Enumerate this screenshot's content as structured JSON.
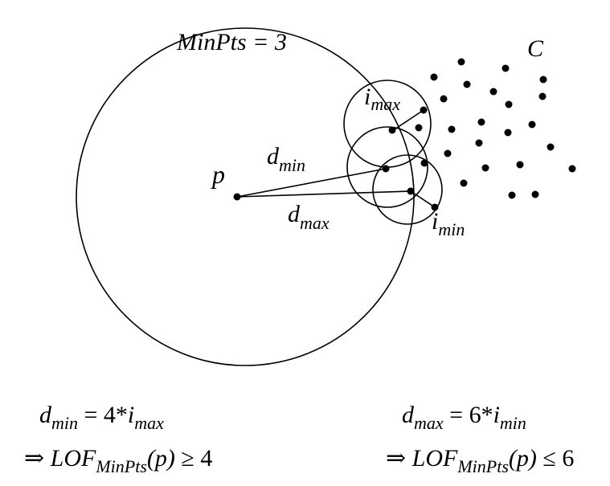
{
  "labels": {
    "minpts_label": "MinPts = 3",
    "cluster_label": "C",
    "point_p": "p",
    "d_min_base": "d",
    "d_min_sub": "min",
    "d_max_base": "d",
    "d_max_sub": "max",
    "i_max_base": "i",
    "i_max_sub": "max",
    "i_min_base": "i",
    "i_min_sub": "min"
  },
  "equations": {
    "left": {
      "lhs_base": "d",
      "lhs_sub": "min",
      "rhs": " = 4*",
      "rhs_var": "i",
      "rhs_sub": "max",
      "implies": "⇒ ",
      "lof": "LOF",
      "lof_sub": "MinPts",
      "arg": "(p)",
      "relation": " ≥ 4"
    },
    "right": {
      "lhs_base": "d",
      "lhs_sub": "max",
      "rhs": " = 6*",
      "rhs_var": "i",
      "rhs_sub": "min",
      "implies": "⇒ ",
      "lof": "LOF",
      "lof_sub": "MinPts",
      "arg": "(p)",
      "relation": " ≤ 6"
    }
  },
  "colors": {
    "ink": "#000000",
    "background": "#ffffff"
  }
}
